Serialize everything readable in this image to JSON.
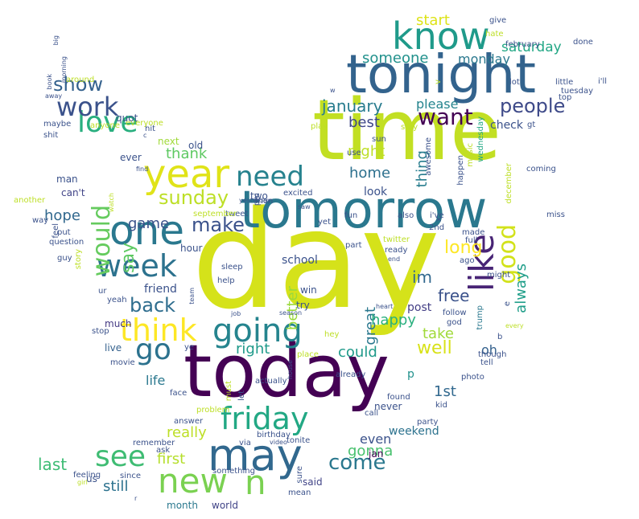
{
  "words": [
    {
      "text": "day",
      "color": "#d5e21a"
    },
    {
      "text": "time",
      "color": "#c2df23"
    },
    {
      "text": "today",
      "color": "#440154"
    },
    {
      "text": "tomorrow",
      "color": "#2a788e"
    },
    {
      "text": "tonight",
      "color": "#33638d"
    },
    {
      "text": "may",
      "color": "#31688e"
    },
    {
      "text": "one",
      "color": "#2a788e"
    },
    {
      "text": "year",
      "color": "#e0e318"
    },
    {
      "text": "know",
      "color": "#1f9a8a"
    },
    {
      "text": "like",
      "color": "#482475"
    },
    {
      "text": "going",
      "color": "#25848e"
    },
    {
      "text": "week",
      "color": "#2c728e"
    },
    {
      "text": "friday",
      "color": "#22a884"
    },
    {
      "text": "new",
      "color": "#7ad151"
    },
    {
      "text": "n",
      "color": "#7ad151"
    },
    {
      "text": "love",
      "color": "#29af7f"
    },
    {
      "text": "work",
      "color": "#3b528b"
    },
    {
      "text": "go",
      "color": "#2c728e"
    },
    {
      "text": "think",
      "color": "#fde725"
    },
    {
      "text": "see",
      "color": "#3fbc73"
    },
    {
      "text": "need",
      "color": "#26828e"
    },
    {
      "text": "good",
      "color": "#d2e21b"
    },
    {
      "text": "would",
      "color": "#65cb5e"
    },
    {
      "text": "want",
      "color": "#440154"
    },
    {
      "text": "people",
      "color": "#3e4a89"
    },
    {
      "text": "come",
      "color": "#2a788e"
    },
    {
      "text": "sunday",
      "color": "#bddf26"
    },
    {
      "text": "make",
      "color": "#3b528b"
    },
    {
      "text": "back",
      "color": "#2e6d8e"
    },
    {
      "text": "show",
      "color": "#34618d"
    },
    {
      "text": "say",
      "color": "#5ec962"
    },
    {
      "text": "well",
      "color": "#d8e219"
    },
    {
      "text": "long",
      "color": "#fde725"
    },
    {
      "text": "january",
      "color": "#287c8e"
    },
    {
      "text": "someone",
      "color": "#21918c"
    },
    {
      "text": "start",
      "color": "#dde318"
    },
    {
      "text": "saturday",
      "color": "#22a785"
    },
    {
      "text": "monday",
      "color": "#2a788e"
    },
    {
      "text": "best",
      "color": "#3f4788"
    },
    {
      "text": "night",
      "color": "#bddf26"
    },
    {
      "text": "please",
      "color": "#25848e"
    },
    {
      "text": "thing",
      "color": "#287d8e"
    },
    {
      "text": "home",
      "color": "#2d708e"
    },
    {
      "text": "thank",
      "color": "#5ec962"
    },
    {
      "text": "hope",
      "color": "#31688e"
    },
    {
      "text": "game",
      "color": "#3b528b"
    },
    {
      "text": "better",
      "color": "#9bd93c"
    },
    {
      "text": "great",
      "color": "#2a788e"
    },
    {
      "text": "im",
      "color": "#31688e"
    },
    {
      "text": "free",
      "color": "#3b528b"
    },
    {
      "text": "always",
      "color": "#1f9e89"
    },
    {
      "text": "happy",
      "color": "#2ab07f"
    },
    {
      "text": "take",
      "color": "#a0da39"
    },
    {
      "text": "right",
      "color": "#1f9a8a"
    },
    {
      "text": "could",
      "color": "#1f9a8a"
    },
    {
      "text": "1st",
      "color": "#31688e"
    },
    {
      "text": "really",
      "color": "#bddf26"
    },
    {
      "text": "first",
      "color": "#b5de2b"
    },
    {
      "text": "last",
      "color": "#3dbc74"
    },
    {
      "text": "still",
      "color": "#2c728e"
    },
    {
      "text": "gonna",
      "color": "#48c16e"
    },
    {
      "text": "even",
      "color": "#3b528b"
    },
    {
      "text": "weekend",
      "color": "#2c728e"
    },
    {
      "text": "life",
      "color": "#2a788e"
    },
    {
      "text": "friend",
      "color": "#3b528b"
    },
    {
      "text": "much",
      "color": "#443983"
    },
    {
      "text": "live",
      "color": "#34618d"
    },
    {
      "text": "school",
      "color": "#3b528b"
    },
    {
      "text": "post",
      "color": "#433e85"
    },
    {
      "text": "oh",
      "color": "#34618d"
    },
    {
      "text": "world",
      "color": "#414487"
    },
    {
      "text": "month",
      "color": "#2a788e"
    },
    {
      "text": "said",
      "color": "#414487"
    },
    {
      "text": "us",
      "color": "#3b528b"
    },
    {
      "text": "jan",
      "color": "#440154"
    },
    {
      "text": "p",
      "color": "#21918c"
    },
    {
      "text": "never",
      "color": "#3b528b"
    },
    {
      "text": "look",
      "color": "#3b528b"
    },
    {
      "text": "check",
      "color": "#3b528b"
    },
    {
      "text": "next",
      "color": "#a0da39"
    },
    {
      "text": "quot",
      "color": "#3b528b"
    },
    {
      "text": "man",
      "color": "#3b528b"
    },
    {
      "text": "can't",
      "color": "#414487"
    },
    {
      "text": "ever",
      "color": "#3b528b"
    },
    {
      "text": "old",
      "color": "#3b528b"
    },
    {
      "text": "hour",
      "color": "#3b528b"
    },
    {
      "text": "sleep",
      "color": "#3b528b"
    },
    {
      "text": "help",
      "color": "#3b528b"
    },
    {
      "text": "win",
      "color": "#3b528b"
    },
    {
      "text": "try",
      "color": "#3b528b"
    },
    {
      "text": "two",
      "color": "#3b528b"
    },
    {
      "text": "excited",
      "color": "#3b528b"
    },
    {
      "text": "fun",
      "color": "#3b528b"
    },
    {
      "text": "also",
      "color": "#3b528b"
    },
    {
      "text": "i've",
      "color": "#3b528b"
    },
    {
      "text": "miss",
      "color": "#3b528b"
    },
    {
      "text": "coming",
      "color": "#3b528b"
    },
    {
      "text": "december",
      "color": "#bddf26"
    },
    {
      "text": "trump",
      "color": "#2a788e"
    },
    {
      "text": "happen",
      "color": "#3b528b"
    },
    {
      "text": "music",
      "color": "#bddf26"
    },
    {
      "text": "wednesday",
      "color": "#22a884"
    },
    {
      "text": "tuesday",
      "color": "#3b528b"
    },
    {
      "text": "little",
      "color": "#3b528b"
    },
    {
      "text": "lot",
      "color": "#3b528b"
    },
    {
      "text": "done",
      "color": "#3b528b"
    },
    {
      "text": "february",
      "color": "#3b528b"
    },
    {
      "text": "hate",
      "color": "#bddf26"
    },
    {
      "text": "give",
      "color": "#3b528b"
    },
    {
      "text": "i'll",
      "color": "#3b528b"
    },
    {
      "text": "top",
      "color": "#3b528b"
    },
    {
      "text": "gt",
      "color": "#3b528b"
    },
    {
      "text": "play",
      "color": "#bddf26"
    },
    {
      "text": "stay",
      "color": "#bddf26"
    },
    {
      "text": "sun",
      "color": "#3b528b"
    },
    {
      "text": "w",
      "color": "#3b528b"
    },
    {
      "text": "v",
      "color": "#bddf26"
    },
    {
      "text": "use",
      "color": "#3b528b"
    },
    {
      "text": "awesome",
      "color": "#3b528b"
    },
    {
      "text": "yesterday",
      "color": "#3b528b"
    },
    {
      "text": "mon",
      "color": "#3b528b"
    },
    {
      "text": "tweet",
      "color": "#3b528b"
    },
    {
      "text": "pm",
      "color": "#3b528b"
    },
    {
      "text": "saw",
      "color": "#3b528b"
    },
    {
      "text": "yet",
      "color": "#3b528b"
    },
    {
      "text": "x",
      "color": "#3b528b"
    },
    {
      "text": "2nd",
      "color": "#3b528b"
    },
    {
      "text": "made",
      "color": "#3b528b"
    },
    {
      "text": "full",
      "color": "#3b528b"
    },
    {
      "text": "twitter",
      "color": "#bddf26"
    },
    {
      "text": "ready",
      "color": "#3b528b"
    },
    {
      "text": "end",
      "color": "#3b528b"
    },
    {
      "text": "part",
      "color": "#3b528b"
    },
    {
      "text": "ago",
      "color": "#3b528b"
    },
    {
      "text": "might",
      "color": "#3b528b"
    },
    {
      "text": "e",
      "color": "#3b528b"
    },
    {
      "text": "every",
      "color": "#bddf26"
    },
    {
      "text": "b",
      "color": "#3b528b"
    },
    {
      "text": "god",
      "color": "#3b528b"
    },
    {
      "text": "follow",
      "color": "#3b528b"
    },
    {
      "text": "heart",
      "color": "#3b528b"
    },
    {
      "text": "job",
      "color": "#3b528b"
    },
    {
      "text": "season",
      "color": "#3b528b"
    },
    {
      "text": "hey",
      "color": "#bddf26"
    },
    {
      "text": "though",
      "color": "#3b528b"
    },
    {
      "text": "tell",
      "color": "#3b528b"
    },
    {
      "text": "photo",
      "color": "#3b528b"
    },
    {
      "text": "already",
      "color": "#3b528b"
    },
    {
      "text": "found",
      "color": "#3b528b"
    },
    {
      "text": "kid",
      "color": "#3b528b"
    },
    {
      "text": "party",
      "color": "#3b528b"
    },
    {
      "text": "call",
      "color": "#3b528b"
    },
    {
      "text": "place",
      "color": "#bddf26"
    },
    {
      "text": "house",
      "color": "#3b528b"
    },
    {
      "text": "must",
      "color": "#bddf26"
    },
    {
      "text": "let",
      "color": "#3b528b"
    },
    {
      "text": "actually",
      "color": "#3b528b"
    },
    {
      "text": "ye",
      "color": "#3b528b"
    },
    {
      "text": "movie",
      "color": "#3b528b"
    },
    {
      "text": "stop",
      "color": "#3b528b"
    },
    {
      "text": "face",
      "color": "#3b528b"
    },
    {
      "text": "problem",
      "color": "#bddf26"
    },
    {
      "text": "answer",
      "color": "#3b528b"
    },
    {
      "text": "birthday",
      "color": "#3b528b"
    },
    {
      "text": "via",
      "color": "#3b528b"
    },
    {
      "text": "video",
      "color": "#3b528b"
    },
    {
      "text": "tonite",
      "color": "#3b528b"
    },
    {
      "text": "remember",
      "color": "#3b528b"
    },
    {
      "text": "ask",
      "color": "#3b528b"
    },
    {
      "text": "something",
      "color": "#3b528b"
    },
    {
      "text": "since",
      "color": "#3b528b"
    },
    {
      "text": "sure",
      "color": "#3b528b"
    },
    {
      "text": "mean",
      "color": "#3b528b"
    },
    {
      "text": "feeling",
      "color": "#3b528b"
    },
    {
      "text": "girl",
      "color": "#bddf26"
    },
    {
      "text": "r",
      "color": "#3b528b"
    },
    {
      "text": "ur",
      "color": "#3b528b"
    },
    {
      "text": "yeah",
      "color": "#3b528b"
    },
    {
      "text": "team",
      "color": "#3b528b"
    },
    {
      "text": "story",
      "color": "#bddf26"
    },
    {
      "text": "question",
      "color": "#3b528b"
    },
    {
      "text": "guy",
      "color": "#3b528b"
    },
    {
      "text": "feel",
      "color": "#3b528b"
    },
    {
      "text": "put",
      "color": "#3b528b"
    },
    {
      "text": "way",
      "color": "#3b528b"
    },
    {
      "text": "another",
      "color": "#bddf26"
    },
    {
      "text": "watch",
      "color": "#bddf26"
    },
    {
      "text": "september",
      "color": "#bddf26"
    },
    {
      "text": "find",
      "color": "#3b528b"
    },
    {
      "text": "c",
      "color": "#3b528b"
    },
    {
      "text": "hit",
      "color": "#3b528b"
    },
    {
      "text": "anyone",
      "color": "#bddf26"
    },
    {
      "text": "shit",
      "color": "#3b528b"
    },
    {
      "text": "maybe",
      "color": "#3b528b"
    },
    {
      "text": "away",
      "color": "#3b528b"
    },
    {
      "text": "around",
      "color": "#bddf26"
    },
    {
      "text": "book",
      "color": "#3b528b"
    },
    {
      "text": "morning",
      "color": "#3b528b"
    },
    {
      "text": "big",
      "color": "#3b528b"
    },
    {
      "text": "everyone",
      "color": "#bddf26"
    }
  ]
}
